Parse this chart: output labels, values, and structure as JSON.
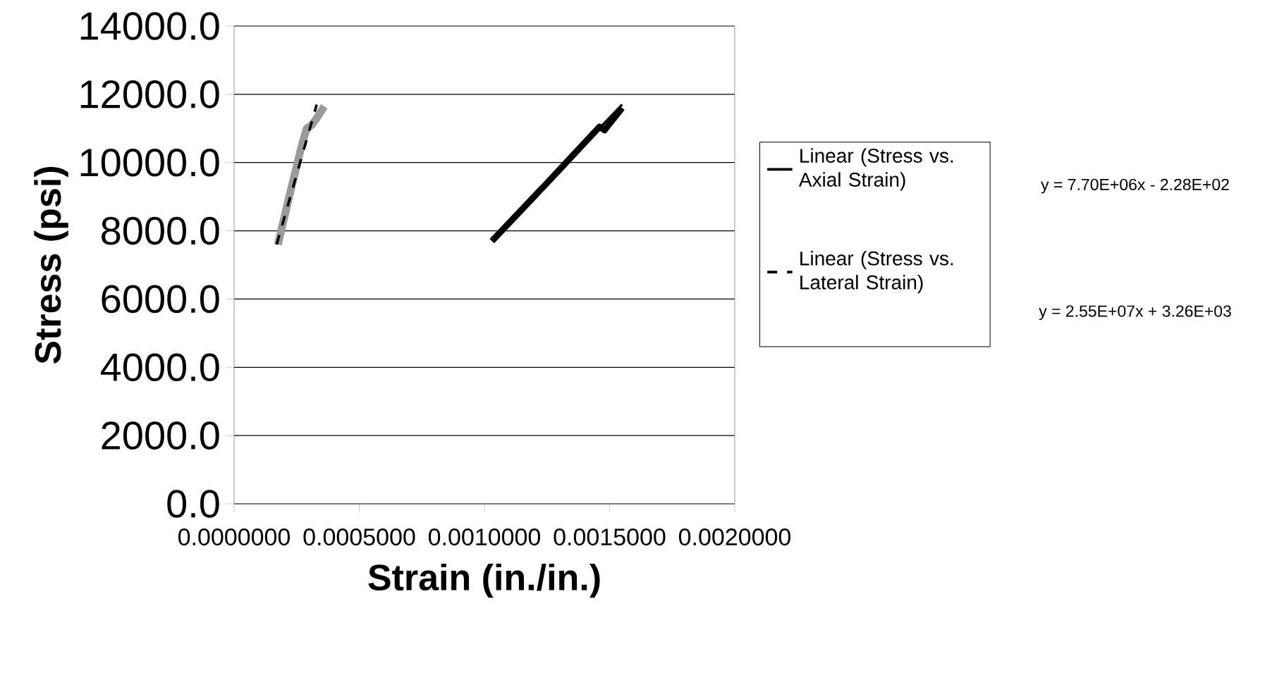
{
  "chart_data": {
    "type": "line",
    "xlabel": "Strain (in./in.)",
    "ylabel": "Stress (psi)",
    "xlim": [
      0,
      0.002
    ],
    "ylim": [
      0,
      14000
    ],
    "xticks": [
      {
        "value": 0,
        "label": "0.0000000"
      },
      {
        "value": 0.0005,
        "label": "0.0005000"
      },
      {
        "value": 0.001,
        "label": "0.0010000"
      },
      {
        "value": 0.0015,
        "label": "0.0015000"
      },
      {
        "value": 0.002,
        "label": "0.0020000"
      }
    ],
    "yticks": [
      {
        "value": 0,
        "label": "0.0"
      },
      {
        "value": 2000,
        "label": "2000.0"
      },
      {
        "value": 4000,
        "label": "4000.0"
      },
      {
        "value": 6000,
        "label": "6000.0"
      },
      {
        "value": 8000,
        "label": "8000.0"
      },
      {
        "value": 10000,
        "label": "10000.0"
      },
      {
        "value": 12000,
        "label": "12000.0"
      },
      {
        "value": 14000,
        "label": "14000.0"
      }
    ],
    "grid": "y",
    "legend": "right",
    "marker": "none",
    "series": [
      {
        "color": "#9a9a9a",
        "line_style": "solid",
        "x": [
          0.000175,
          0.00022,
          0.00027,
          0.00029,
          0.00031,
          0.00033,
          0.00036
        ],
        "values": [
          7600,
          9000,
          10500,
          11000,
          11100,
          11300,
          11650
        ]
      },
      {
        "color": "#000000",
        "line_style": "solid",
        "x": [
          0.00103,
          0.00125,
          0.00146,
          0.00148,
          0.00155
        ],
        "values": [
          7700,
          9400,
          11050,
          10950,
          11600
        ]
      },
      {
        "name": "Linear (Stress vs. Axial Strain)",
        "color": "#000000",
        "line_style": "solid",
        "x": [
          0.00103,
          0.00155
        ],
        "values": [
          7700,
          11700
        ]
      },
      {
        "name": "Linear (Stress vs. Lateral Strain)",
        "color": "#000000",
        "line_style": "dashed",
        "x": [
          0.00017,
          0.00033
        ],
        "values": [
          7600,
          11700
        ]
      }
    ],
    "annotations": [
      "y = 7.70E+06x - 2.28E+02",
      "y = 2.55E+07x + 3.26E+03"
    ]
  }
}
